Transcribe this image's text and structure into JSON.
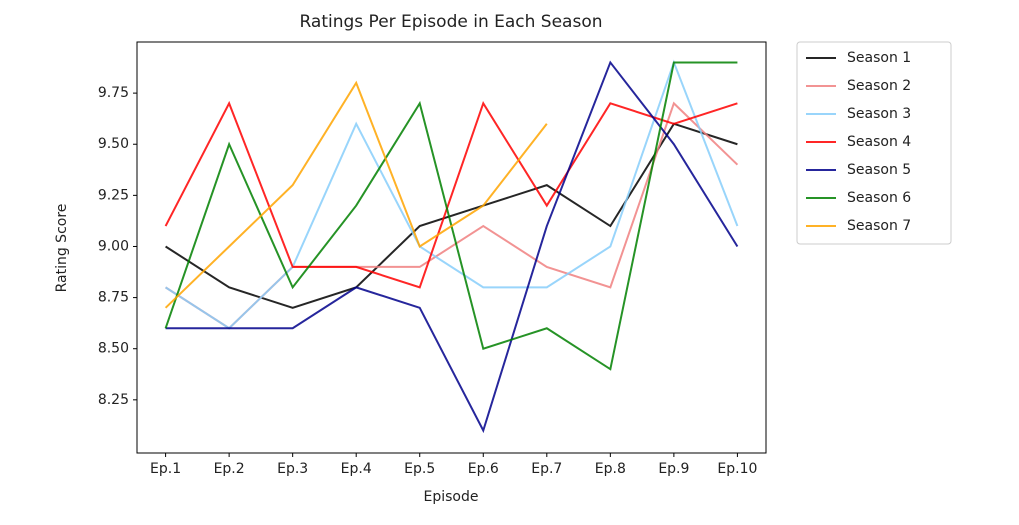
{
  "chart_data": {
    "type": "line",
    "title": "Ratings Per Episode in Each Season",
    "xlabel": "Episode",
    "ylabel": "Rating Score",
    "categories": [
      "Ep.1",
      "Ep.2",
      "Ep.3",
      "Ep.4",
      "Ep.5",
      "Ep.6",
      "Ep.7",
      "Ep.8",
      "Ep.9",
      "Ep.10"
    ],
    "series": [
      {
        "name": "Season 1",
        "color": "#000000",
        "values": [
          9.0,
          8.8,
          8.7,
          8.8,
          9.1,
          9.2,
          9.3,
          9.1,
          9.6,
          9.5
        ]
      },
      {
        "name": "Season 2",
        "color": "#f08080",
        "values": [
          8.8,
          8.6,
          8.9,
          8.9,
          8.9,
          9.1,
          8.9,
          8.8,
          9.7,
          9.4
        ]
      },
      {
        "name": "Season 3",
        "color": "#87cefa",
        "values": [
          8.8,
          8.6,
          8.9,
          9.6,
          9.0,
          8.8,
          8.8,
          9.0,
          9.9,
          9.1
        ]
      },
      {
        "name": "Season 4",
        "color": "#ff0000",
        "values": [
          9.1,
          9.7,
          8.9,
          8.9,
          8.8,
          9.7,
          9.2,
          9.7,
          9.6,
          9.7
        ]
      },
      {
        "name": "Season 5",
        "color": "#00008b",
        "values": [
          8.6,
          8.6,
          8.6,
          8.8,
          8.7,
          8.1,
          9.1,
          9.9,
          9.5,
          9.0
        ]
      },
      {
        "name": "Season 6",
        "color": "#008000",
        "values": [
          8.6,
          9.5,
          8.8,
          9.2,
          9.7,
          8.5,
          8.6,
          8.4,
          9.9,
          9.9
        ]
      },
      {
        "name": "Season 7",
        "color": "#ffa500",
        "values": [
          8.7,
          9.0,
          9.3,
          9.8,
          9.0,
          9.2,
          9.6,
          null,
          null,
          null
        ]
      }
    ],
    "ylim": [
      7.99,
      10.0
    ],
    "yticks": [
      8.25,
      {
        "value": 8.5,
        "label": "8.50"
      },
      8.75,
      {
        "value": 9.0,
        "label": "9.00"
      },
      9.25,
      {
        "value": 9.5,
        "label": "9.50"
      },
      9.75
    ],
    "grid": false,
    "legend": "outside upper right"
  }
}
